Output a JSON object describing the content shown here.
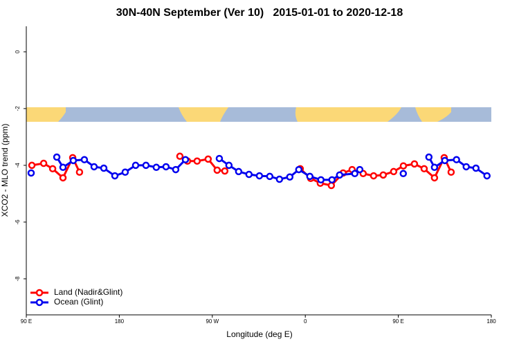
{
  "chart_data": {
    "type": "line",
    "title": "30N-40N September (Ver 10)   2015-01-01 to 2020-12-18",
    "xlabel": "Longitude (deg E)",
    "ylabel": "XCO2 - MLO trend (ppm)",
    "xlim": [
      90,
      540
    ],
    "ylim": [
      -9.27,
      0.9
    ],
    "xticks": [
      {
        "value": 90,
        "label": "90 E"
      },
      180,
      {
        "value": 270,
        "label": "90 W"
      },
      {
        "value": 360,
        "label": "0"
      },
      {
        "value": 450,
        "label": "90 E"
      },
      {
        "value": 540,
        "label": "180"
      }
    ],
    "yticks": [
      0,
      -2,
      -4,
      -6,
      -8
    ],
    "legend": "lower left",
    "series": [
      {
        "name": "Land (Nadir&Glint)",
        "color": "#ff0000",
        "x": [
          95.4,
          106.8,
          115.5,
          125.5,
          134.9,
          141.5,
          null,
          238.6,
          246.0,
          255.3,
          266.0,
          274.7,
          282.1,
          null,
          355.1,
          365.2,
          374.5,
          385.2,
          396.6,
          405.3,
          416.0,
          426.1,
          435.4,
          445.5,
          454.9,
          465.6,
          475.0,
          485.0,
          494.4,
          501.1
        ],
        "values": [
          -4.0,
          -3.93,
          -4.12,
          -4.44,
          -3.73,
          -4.24,
          null,
          -3.68,
          -3.85,
          -3.85,
          -3.78,
          -4.17,
          -4.2,
          null,
          -4.12,
          -4.46,
          -4.63,
          -4.71,
          -4.27,
          -4.15,
          -4.29,
          -4.37,
          -4.34,
          -4.22,
          -4.02,
          -3.95,
          -4.12,
          -4.44,
          -3.73,
          -4.24
        ]
      },
      {
        "name": "Ocean (Glint)",
        "color": "#0000ee",
        "x": [
          94.7,
          null,
          119.5,
          125.5,
          135.5,
          146.2,
          155.6,
          165.0,
          175.7,
          185.7,
          195.8,
          205.8,
          215.8,
          225.2,
          234.6,
          244.0,
          null,
          276.8,
          286.1,
          295.5,
          305.5,
          315.6,
          325.6,
          335.0,
          345.0,
          353.7,
          364.4,
          375.1,
          385.8,
          393.2,
          407.9,
          412.7,
          null,
          454.8,
          null,
          479.6,
          485.0,
          495.0,
          506.3,
          515.7,
          525.1,
          535.8
        ],
        "values": [
          -4.27,
          null,
          -3.71,
          -4.07,
          -3.83,
          -3.8,
          -4.05,
          -4.1,
          -4.37,
          -4.24,
          -4.0,
          -4.0,
          -4.07,
          -4.05,
          -4.15,
          -3.8,
          null,
          -3.76,
          -4.0,
          -4.22,
          -4.32,
          -4.37,
          -4.39,
          -4.49,
          -4.41,
          -4.15,
          -4.39,
          -4.51,
          -4.51,
          -4.34,
          -4.29,
          -4.15,
          null,
          -4.29,
          null,
          -3.71,
          -4.07,
          -3.83,
          -3.8,
          -4.05,
          -4.1,
          -4.37
        ]
      }
    ]
  }
}
